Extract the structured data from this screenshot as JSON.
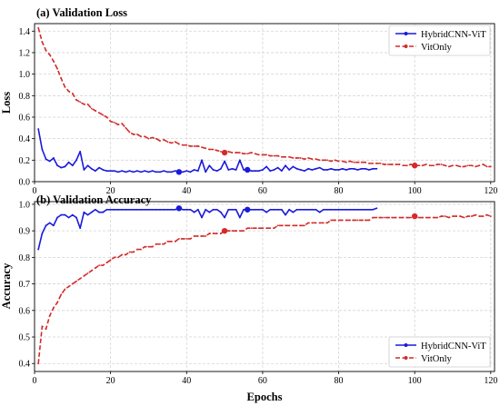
{
  "colors": {
    "hybrid": "#1a1adc",
    "vit": "#d42a2a"
  },
  "chart_data": [
    {
      "type": "line",
      "title": "(a) Validation Loss",
      "xlabel": "",
      "ylabel": "Loss",
      "xlim": [
        0,
        121
      ],
      "ylim": [
        0,
        1.47
      ],
      "xticks": [
        0,
        20,
        40,
        60,
        80,
        100,
        120
      ],
      "yticks": [
        0.0,
        0.2,
        0.4,
        0.6,
        0.8,
        1.0,
        1.2,
        1.4
      ],
      "ytick_labels": [
        "0.0",
        "0.2",
        "0.4",
        "0.6",
        "0.8",
        "1.0",
        "1.2",
        "1.4"
      ],
      "grid": true,
      "legend_position": "top-right",
      "series": [
        {
          "name": "HybridCNN-ViT",
          "color_key": "hybrid",
          "style": "solid",
          "x": [
            1,
            2,
            3,
            4,
            5,
            6,
            7,
            8,
            9,
            10,
            11,
            12,
            13,
            14,
            15,
            16,
            17,
            18,
            19,
            20,
            21,
            22,
            23,
            24,
            25,
            26,
            27,
            28,
            29,
            30,
            31,
            32,
            33,
            34,
            35,
            36,
            37,
            38,
            39,
            40,
            41,
            42,
            43,
            44,
            45,
            46,
            47,
            48,
            49,
            50,
            51,
            52,
            53,
            54,
            55,
            56,
            57,
            58,
            59,
            60,
            61,
            62,
            63,
            64,
            65,
            66,
            67,
            68,
            69,
            70,
            71,
            72,
            73,
            74,
            75,
            76,
            77,
            78,
            79,
            80,
            81,
            82,
            83,
            84,
            85,
            86,
            87,
            88,
            89,
            90
          ],
          "y": [
            0.49,
            0.3,
            0.21,
            0.19,
            0.22,
            0.15,
            0.13,
            0.14,
            0.18,
            0.15,
            0.2,
            0.28,
            0.11,
            0.15,
            0.12,
            0.1,
            0.13,
            0.11,
            0.1,
            0.1,
            0.1,
            0.09,
            0.1,
            0.09,
            0.1,
            0.09,
            0.1,
            0.09,
            0.1,
            0.09,
            0.1,
            0.09,
            0.09,
            0.1,
            0.09,
            0.09,
            0.1,
            0.09,
            0.09,
            0.1,
            0.09,
            0.11,
            0.1,
            0.2,
            0.09,
            0.15,
            0.11,
            0.1,
            0.12,
            0.19,
            0.11,
            0.12,
            0.11,
            0.2,
            0.11,
            0.11,
            0.1,
            0.1,
            0.1,
            0.11,
            0.14,
            0.1,
            0.11,
            0.13,
            0.1,
            0.15,
            0.11,
            0.14,
            0.12,
            0.11,
            0.1,
            0.12,
            0.11,
            0.12,
            0.13,
            0.11,
            0.11,
            0.12,
            0.11,
            0.11,
            0.12,
            0.11,
            0.12,
            0.12,
            0.11,
            0.12,
            0.12,
            0.11,
            0.12,
            0.12
          ],
          "highlight_x": [
            38,
            56
          ]
        },
        {
          "name": "VitOnly",
          "color_key": "vit",
          "style": "dashed",
          "x": [
            1,
            2,
            3,
            4,
            5,
            6,
            7,
            8,
            9,
            10,
            11,
            12,
            13,
            14,
            15,
            16,
            17,
            18,
            19,
            20,
            21,
            22,
            23,
            24,
            25,
            26,
            27,
            28,
            29,
            30,
            31,
            32,
            33,
            34,
            35,
            36,
            37,
            38,
            39,
            40,
            41,
            42,
            43,
            44,
            45,
            46,
            47,
            48,
            49,
            50,
            51,
            52,
            53,
            54,
            55,
            56,
            57,
            58,
            59,
            60,
            61,
            62,
            63,
            64,
            65,
            66,
            67,
            68,
            69,
            70,
            71,
            72,
            73,
            74,
            75,
            76,
            77,
            78,
            79,
            80,
            81,
            82,
            83,
            84,
            85,
            86,
            87,
            88,
            89,
            90,
            91,
            92,
            93,
            94,
            95,
            96,
            97,
            98,
            99,
            100,
            101,
            102,
            103,
            104,
            105,
            106,
            107,
            108,
            109,
            110,
            111,
            112,
            113,
            114,
            115,
            116,
            117,
            118,
            119,
            120
          ],
          "y": [
            1.43,
            1.3,
            1.22,
            1.18,
            1.12,
            1.05,
            0.96,
            0.88,
            0.84,
            0.82,
            0.76,
            0.74,
            0.72,
            0.72,
            0.68,
            0.66,
            0.64,
            0.62,
            0.6,
            0.56,
            0.55,
            0.53,
            0.54,
            0.5,
            0.46,
            0.44,
            0.44,
            0.42,
            0.42,
            0.4,
            0.41,
            0.4,
            0.38,
            0.39,
            0.37,
            0.36,
            0.37,
            0.35,
            0.34,
            0.34,
            0.33,
            0.33,
            0.33,
            0.32,
            0.31,
            0.3,
            0.3,
            0.29,
            0.28,
            0.27,
            0.28,
            0.27,
            0.27,
            0.27,
            0.26,
            0.26,
            0.27,
            0.26,
            0.25,
            0.25,
            0.25,
            0.24,
            0.24,
            0.24,
            0.23,
            0.23,
            0.23,
            0.22,
            0.22,
            0.22,
            0.21,
            0.22,
            0.21,
            0.21,
            0.2,
            0.2,
            0.2,
            0.19,
            0.2,
            0.19,
            0.19,
            0.18,
            0.19,
            0.18,
            0.18,
            0.18,
            0.18,
            0.17,
            0.17,
            0.17,
            0.17,
            0.16,
            0.16,
            0.16,
            0.16,
            0.16,
            0.15,
            0.15,
            0.16,
            0.15,
            0.15,
            0.15,
            0.16,
            0.15,
            0.15,
            0.16,
            0.16,
            0.15,
            0.14,
            0.15,
            0.15,
            0.14,
            0.14,
            0.15,
            0.15,
            0.14,
            0.15,
            0.16,
            0.14,
            0.14
          ],
          "highlight_x": [
            50,
            100
          ]
        }
      ]
    },
    {
      "type": "line",
      "title": "(b) Validation Accuracy",
      "xlabel": "Epochs",
      "ylabel": "Accuracy",
      "xlim": [
        0,
        121
      ],
      "ylim": [
        0.37,
        1.01
      ],
      "xticks": [
        0,
        20,
        40,
        60,
        80,
        100,
        120
      ],
      "yticks": [
        0.4,
        0.5,
        0.6,
        0.7,
        0.8,
        0.9,
        1.0
      ],
      "ytick_labels": [
        "0.4",
        "0.5",
        "0.6",
        "0.7",
        "0.8",
        "0.9",
        "1.0"
      ],
      "grid": true,
      "legend_position": "bottom-right",
      "series": [
        {
          "name": "HybridCNN-ViT",
          "color_key": "hybrid",
          "style": "solid",
          "x": [
            1,
            2,
            3,
            4,
            5,
            6,
            7,
            8,
            9,
            10,
            11,
            12,
            13,
            14,
            15,
            16,
            17,
            18,
            19,
            20,
            21,
            22,
            23,
            24,
            25,
            26,
            27,
            28,
            29,
            30,
            31,
            32,
            33,
            34,
            35,
            36,
            37,
            38,
            39,
            40,
            41,
            42,
            43,
            44,
            45,
            46,
            47,
            48,
            49,
            50,
            51,
            52,
            53,
            54,
            55,
            56,
            57,
            58,
            59,
            60,
            61,
            62,
            63,
            64,
            65,
            66,
            67,
            68,
            69,
            70,
            71,
            72,
            73,
            74,
            75,
            76,
            77,
            78,
            79,
            80,
            81,
            82,
            83,
            84,
            85,
            86,
            87,
            88,
            89,
            90
          ],
          "y": [
            0.83,
            0.89,
            0.92,
            0.93,
            0.92,
            0.95,
            0.96,
            0.96,
            0.95,
            0.96,
            0.95,
            0.91,
            0.97,
            0.96,
            0.97,
            0.98,
            0.97,
            0.97,
            0.98,
            0.98,
            0.98,
            0.98,
            0.98,
            0.98,
            0.98,
            0.98,
            0.98,
            0.98,
            0.98,
            0.98,
            0.98,
            0.98,
            0.98,
            0.98,
            0.98,
            0.98,
            0.98,
            0.985,
            0.98,
            0.98,
            0.98,
            0.97,
            0.98,
            0.95,
            0.98,
            0.97,
            0.98,
            0.98,
            0.97,
            0.95,
            0.98,
            0.98,
            0.98,
            0.95,
            0.98,
            0.98,
            0.98,
            0.98,
            0.98,
            0.98,
            0.97,
            0.98,
            0.98,
            0.98,
            0.98,
            0.96,
            0.98,
            0.97,
            0.98,
            0.98,
            0.98,
            0.98,
            0.98,
            0.98,
            0.97,
            0.98,
            0.98,
            0.98,
            0.98,
            0.98,
            0.98,
            0.98,
            0.98,
            0.98,
            0.98,
            0.98,
            0.98,
            0.98,
            0.98,
            0.985
          ],
          "highlight_x": [
            38,
            56
          ]
        },
        {
          "name": "VitOnly",
          "color_key": "vit",
          "style": "dashed",
          "x": [
            1,
            2,
            3,
            4,
            5,
            6,
            7,
            8,
            9,
            10,
            11,
            12,
            13,
            14,
            15,
            16,
            17,
            18,
            19,
            20,
            21,
            22,
            23,
            24,
            25,
            26,
            27,
            28,
            29,
            30,
            31,
            32,
            33,
            34,
            35,
            36,
            37,
            38,
            39,
            40,
            41,
            42,
            43,
            44,
            45,
            46,
            47,
            48,
            49,
            50,
            51,
            52,
            53,
            54,
            55,
            56,
            57,
            58,
            59,
            60,
            61,
            62,
            63,
            64,
            65,
            66,
            67,
            68,
            69,
            70,
            71,
            72,
            73,
            74,
            75,
            76,
            77,
            78,
            79,
            80,
            81,
            82,
            83,
            84,
            85,
            86,
            87,
            88,
            89,
            90,
            91,
            92,
            93,
            94,
            95,
            96,
            97,
            98,
            99,
            100,
            101,
            102,
            103,
            104,
            105,
            106,
            107,
            108,
            109,
            110,
            111,
            112,
            113,
            114,
            115,
            116,
            117,
            118,
            119,
            120
          ],
          "y": [
            0.4,
            0.54,
            0.53,
            0.58,
            0.61,
            0.63,
            0.66,
            0.68,
            0.69,
            0.7,
            0.71,
            0.72,
            0.73,
            0.74,
            0.75,
            0.76,
            0.77,
            0.77,
            0.78,
            0.79,
            0.8,
            0.8,
            0.81,
            0.81,
            0.82,
            0.82,
            0.83,
            0.83,
            0.84,
            0.84,
            0.84,
            0.85,
            0.85,
            0.85,
            0.86,
            0.86,
            0.86,
            0.87,
            0.87,
            0.87,
            0.87,
            0.88,
            0.88,
            0.88,
            0.88,
            0.89,
            0.89,
            0.89,
            0.89,
            0.9,
            0.9,
            0.9,
            0.9,
            0.9,
            0.9,
            0.91,
            0.91,
            0.91,
            0.91,
            0.91,
            0.91,
            0.91,
            0.91,
            0.92,
            0.92,
            0.92,
            0.92,
            0.92,
            0.92,
            0.92,
            0.92,
            0.93,
            0.93,
            0.93,
            0.93,
            0.93,
            0.93,
            0.94,
            0.94,
            0.94,
            0.94,
            0.94,
            0.94,
            0.94,
            0.94,
            0.94,
            0.94,
            0.94,
            0.95,
            0.95,
            0.95,
            0.95,
            0.95,
            0.95,
            0.95,
            0.95,
            0.95,
            0.95,
            0.95,
            0.955,
            0.95,
            0.95,
            0.95,
            0.95,
            0.95,
            0.95,
            0.955,
            0.955,
            0.95,
            0.955,
            0.955,
            0.955,
            0.95,
            0.955,
            0.955,
            0.96,
            0.955,
            0.955,
            0.96,
            0.955
          ],
          "highlight_x": [
            50,
            100
          ]
        }
      ]
    }
  ]
}
